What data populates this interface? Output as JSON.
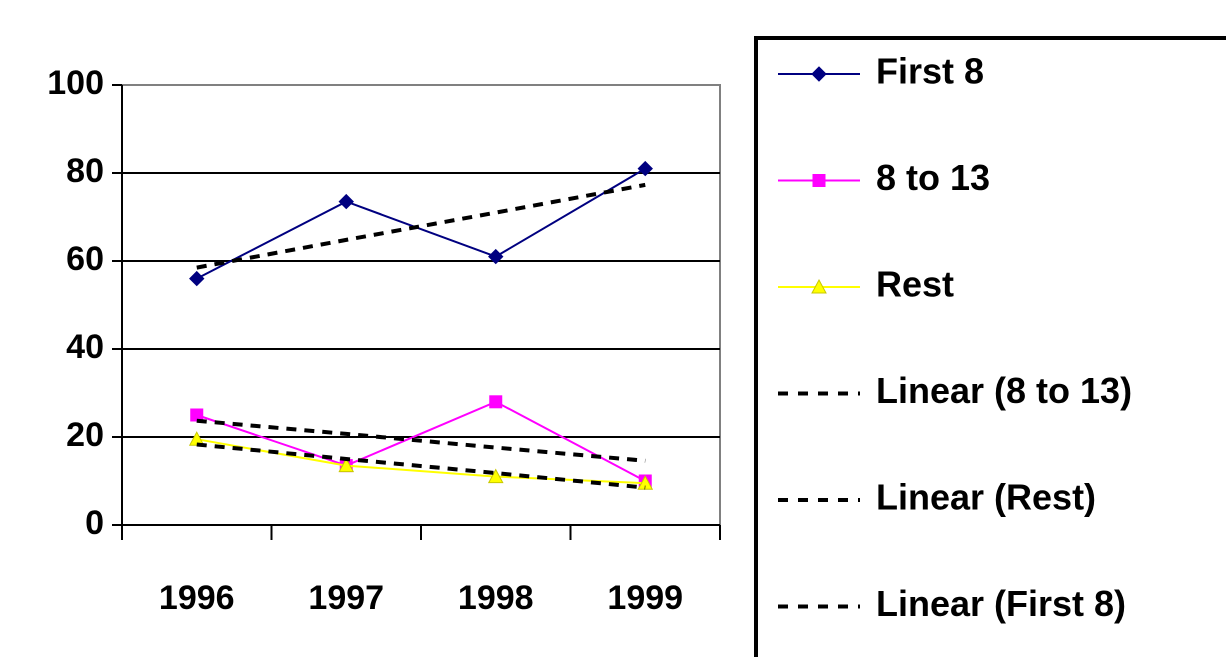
{
  "chart_data": {
    "type": "line",
    "categories": [
      "1996",
      "1997",
      "1998",
      "1999"
    ],
    "series": [
      {
        "name": "First 8",
        "color": "#000080",
        "marker": "diamond",
        "values": [
          56,
          73.5,
          61,
          81
        ]
      },
      {
        "name": "8 to 13",
        "color": "#ff00ff",
        "marker": "square",
        "values": [
          25,
          13.5,
          28,
          10
        ]
      },
      {
        "name": "Rest",
        "color": "#ffff00",
        "marker": "triangle",
        "values": [
          19.5,
          13.5,
          11,
          9.5
        ]
      },
      {
        "name": "Linear (8 to 13)",
        "color": "#000000",
        "style": "dashed",
        "values": [
          23.7,
          20.7,
          17.6,
          14.6
        ]
      },
      {
        "name": "Linear (Rest)",
        "color": "#000000",
        "style": "dashed",
        "values": [
          18.3,
          15,
          11.8,
          8.5
        ]
      },
      {
        "name": "Linear (First 8)",
        "color": "#000000",
        "style": "dashed",
        "values": [
          58.5,
          64.8,
          71,
          77.3
        ]
      }
    ],
    "ylim": [
      0,
      100
    ],
    "yticks": [
      0,
      20,
      40,
      60,
      80,
      100
    ],
    "grid": true,
    "legend": "right"
  }
}
